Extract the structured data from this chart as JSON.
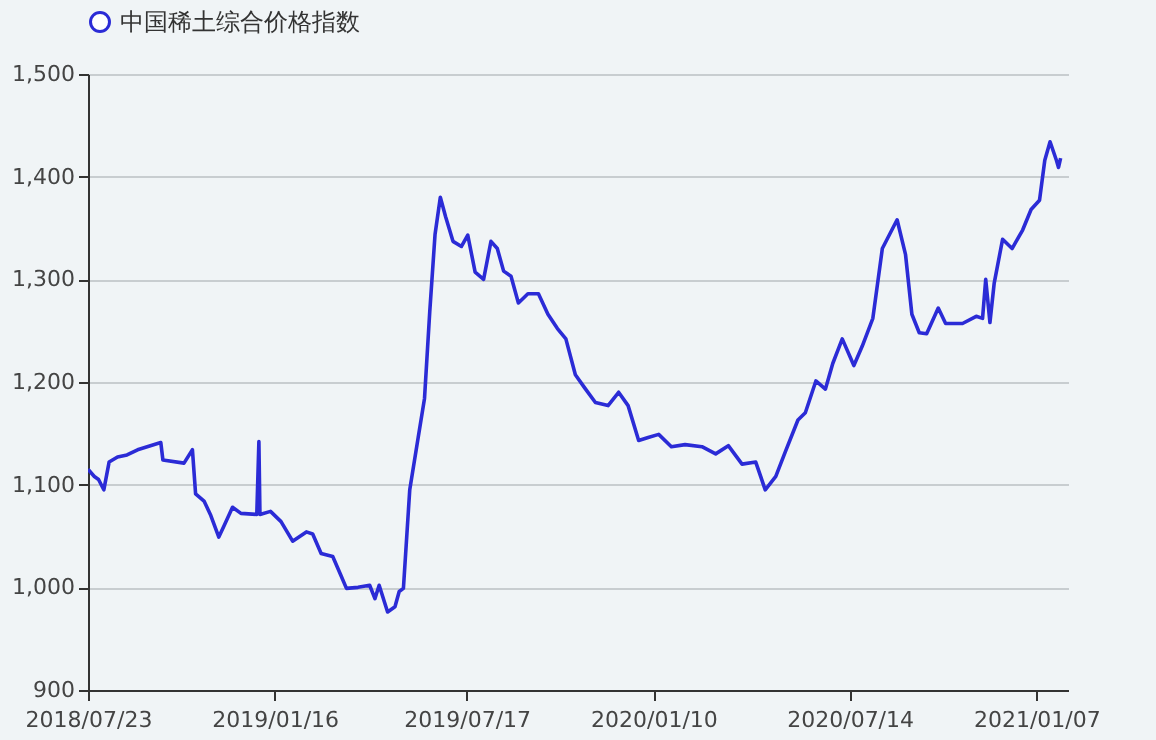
{
  "chart_data": {
    "type": "line",
    "x": [
      "2018-07-23",
      "2018-07-29",
      "2018-08-02",
      "2018-08-07",
      "2018-08-12",
      "2018-08-20",
      "2018-08-29",
      "2018-09-08",
      "2018-09-30",
      "2018-10-02",
      "2018-10-22",
      "2018-10-30",
      "2018-11-02",
      "2018-11-10",
      "2018-11-16",
      "2018-11-24",
      "2018-11-29",
      "2018-12-07",
      "2018-12-15",
      "2018-12-30",
      "2019-01-01",
      "2019-01-02",
      "2019-01-12",
      "2019-01-22",
      "2019-02-02",
      "2019-02-15",
      "2019-02-21",
      "2019-03-01",
      "2019-03-12",
      "2019-03-20",
      "2019-03-25",
      "2019-04-05",
      "2019-04-16",
      "2019-04-21",
      "2019-04-25",
      "2019-05-03",
      "2019-05-10",
      "2019-05-14",
      "2019-05-18",
      "2019-05-24",
      "2019-06-01",
      "2019-06-07",
      "2019-06-12",
      "2019-06-17",
      "2019-06-22",
      "2019-06-27",
      "2019-07-04",
      "2019-07-12",
      "2019-07-18",
      "2019-07-25",
      "2019-08-02",
      "2019-08-09",
      "2019-08-15",
      "2019-08-21",
      "2019-08-28",
      "2019-09-04",
      "2019-09-13",
      "2019-09-23",
      "2019-10-02",
      "2019-10-11",
      "2019-10-19",
      "2019-10-28",
      "2019-11-06",
      "2019-11-16",
      "2019-11-28",
      "2019-12-08",
      "2019-12-17",
      "2019-12-27",
      "2020-01-05",
      "2020-01-15",
      "2020-01-27",
      "2020-02-09",
      "2020-02-25",
      "2020-03-09",
      "2020-03-21",
      "2020-04-03",
      "2020-04-16",
      "2020-04-25",
      "2020-05-05",
      "2020-05-14",
      "2020-05-26",
      "2020-06-02",
      "2020-06-12",
      "2020-06-21",
      "2020-06-28",
      "2020-07-07",
      "2020-07-18",
      "2020-07-26",
      "2020-08-05",
      "2020-08-14",
      "2020-08-28",
      "2020-09-05",
      "2020-09-11",
      "2020-09-18",
      "2020-09-25",
      "2020-10-06",
      "2020-10-13",
      "2020-10-29",
      "2020-11-11",
      "2020-11-17",
      "2020-11-20",
      "2020-11-24",
      "2020-11-28",
      "2020-12-06",
      "2020-12-15",
      "2020-12-25",
      "2021-01-02",
      "2021-01-10",
      "2021-01-15",
      "2021-01-20",
      "2021-01-26",
      "2021-01-28",
      "2021-01-30"
    ],
    "series": [
      {
        "name": "中国稀土综合价格指数",
        "color": "#2b2bd6",
        "values": [
          1115,
          1108,
          1105,
          1095,
          1122,
          1127,
          1129,
          1134,
          1141,
          1124,
          1121,
          1134,
          1091,
          1084,
          1071,
          1049,
          1060,
          1078,
          1072,
          1071,
          1142,
          1071,
          1074,
          1064,
          1045,
          1054,
          1052,
          1033,
          1030,
          1011,
          999,
          1000,
          1002,
          989,
          1002,
          976,
          981,
          996,
          999,
          1095,
          1146,
          1184,
          1269,
          1344,
          1380,
          1361,
          1337,
          1332,
          1343,
          1307,
          1300,
          1337,
          1330,
          1308,
          1303,
          1277,
          1286,
          1286,
          1266,
          1252,
          1242,
          1207,
          1194,
          1180,
          1177,
          1190,
          1177,
          1143,
          1146,
          1149,
          1137,
          1139,
          1137,
          1130,
          1138,
          1120,
          1122,
          1095,
          1108,
          1132,
          1163,
          1170,
          1201,
          1193,
          1218,
          1242,
          1216,
          1235,
          1262,
          1330,
          1358,
          1324,
          1266,
          1248,
          1247,
          1272,
          1257,
          1257,
          1264,
          1262,
          1300,
          1258,
          1296,
          1339,
          1330,
          1348,
          1368,
          1377,
          1416,
          1434,
          1416,
          1409,
          1418
        ]
      }
    ],
    "xlim": [
      "2018-07-23",
      "2021-02-06"
    ],
    "xticks": [
      {
        "value": "2018-07-23",
        "label": "2018/07/23"
      },
      {
        "value": "2019-01-16",
        "label": "2019/01/16"
      },
      {
        "value": "2019-07-17",
        "label": "2019/07/17"
      },
      {
        "value": "2020-01-10",
        "label": "2020/01/10"
      },
      {
        "value": "2020-07-14",
        "label": "2020/07/14"
      },
      {
        "value": "2021-01-07",
        "label": "2021/01/07"
      }
    ],
    "ylim": [
      900,
      1500
    ],
    "yticks": [
      {
        "value": 900,
        "label": "900"
      },
      {
        "value": 1000,
        "label": "1,000"
      },
      {
        "value": 1100,
        "label": "1,100"
      },
      {
        "value": 1200,
        "label": "1,200"
      },
      {
        "value": 1300,
        "label": "1,300"
      },
      {
        "value": 1400,
        "label": "1,400"
      },
      {
        "value": 1500,
        "label": "1,500"
      }
    ],
    "grid": "y",
    "legend": "top",
    "marker": "none",
    "line_style": "solid"
  }
}
